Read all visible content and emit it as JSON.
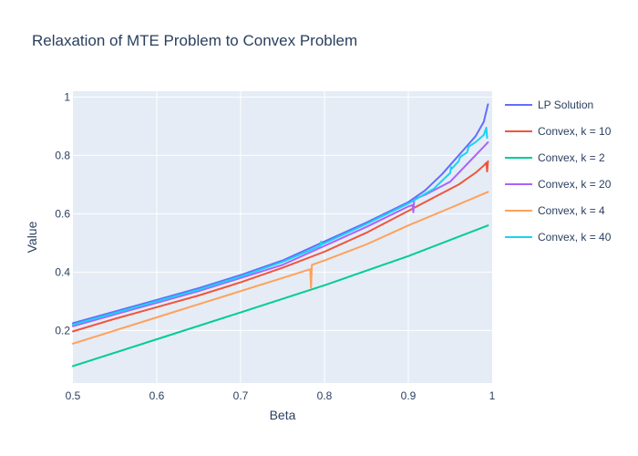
{
  "chart_data": {
    "type": "line",
    "title": "Relaxation of MTE Problem to Convex Problem",
    "xlabel": "Beta",
    "ylabel": "Value",
    "xlim": [
      0.5,
      1.0
    ],
    "ylim": [
      0.02,
      1.02
    ],
    "xticks": [
      "0.5",
      "0.6",
      "0.7",
      "0.8",
      "0.9",
      "1"
    ],
    "xtick_values": [
      0.5,
      0.6,
      0.7,
      0.8,
      0.9,
      1.0
    ],
    "yticks": [
      "0.2",
      "0.4",
      "0.6",
      "0.8",
      "1"
    ],
    "ytick_values": [
      0.2,
      0.4,
      0.6,
      0.8,
      1.0
    ],
    "grid": true,
    "legend_position": "right",
    "plot_background": "#e5ecf6",
    "series": [
      {
        "name": "LP Solution",
        "color": "#636efa",
        "x": [
          0.5,
          0.55,
          0.6,
          0.65,
          0.7,
          0.75,
          0.8,
          0.85,
          0.9,
          0.92,
          0.94,
          0.96,
          0.98,
          0.99,
          0.995
        ],
        "y": [
          0.225,
          0.265,
          0.305,
          0.345,
          0.39,
          0.44,
          0.505,
          0.57,
          0.64,
          0.68,
          0.735,
          0.8,
          0.865,
          0.915,
          0.975
        ]
      },
      {
        "name": "Convex, k = 10",
        "color": "#ef553b",
        "x": [
          0.5,
          0.55,
          0.6,
          0.65,
          0.7,
          0.75,
          0.8,
          0.85,
          0.9,
          0.93,
          0.96,
          0.98,
          0.99,
          0.993,
          0.994,
          0.995
        ],
        "y": [
          0.197,
          0.24,
          0.28,
          0.32,
          0.365,
          0.415,
          0.47,
          0.535,
          0.61,
          0.655,
          0.7,
          0.74,
          0.765,
          0.775,
          0.745,
          0.78
        ]
      },
      {
        "name": "Convex, k = 2",
        "color": "#00cc96",
        "x": [
          0.5,
          0.6,
          0.7,
          0.8,
          0.9,
          0.995
        ],
        "y": [
          0.078,
          0.17,
          0.262,
          0.355,
          0.455,
          0.56
        ]
      },
      {
        "name": "Convex, k = 20",
        "color": "#ab63fa",
        "x": [
          0.5,
          0.55,
          0.6,
          0.65,
          0.7,
          0.75,
          0.8,
          0.85,
          0.9,
          0.905,
          0.906,
          0.907,
          0.92,
          0.95,
          0.97,
          0.98,
          0.99,
          0.995
        ],
        "y": [
          0.215,
          0.255,
          0.295,
          0.335,
          0.38,
          0.425,
          0.49,
          0.555,
          0.625,
          0.63,
          0.605,
          0.65,
          0.665,
          0.71,
          0.77,
          0.8,
          0.83,
          0.845
        ]
      },
      {
        "name": "Convex, k = 4",
        "color": "#ffa15a",
        "x": [
          0.5,
          0.55,
          0.6,
          0.65,
          0.7,
          0.75,
          0.783,
          0.784,
          0.785,
          0.8,
          0.85,
          0.9,
          0.95,
          0.995
        ],
        "y": [
          0.155,
          0.2,
          0.245,
          0.29,
          0.335,
          0.38,
          0.41,
          0.345,
          0.425,
          0.44,
          0.495,
          0.56,
          0.62,
          0.675
        ]
      },
      {
        "name": "Convex, k = 40",
        "color": "#19d3f3",
        "x": [
          0.5,
          0.55,
          0.6,
          0.65,
          0.7,
          0.75,
          0.795,
          0.796,
          0.797,
          0.85,
          0.9,
          0.93,
          0.95,
          0.951,
          0.952,
          0.96,
          0.962,
          0.97,
          0.972,
          0.98,
          0.99,
          0.993,
          0.994
        ],
        "y": [
          0.22,
          0.26,
          0.3,
          0.34,
          0.385,
          0.435,
          0.49,
          0.505,
          0.495,
          0.565,
          0.635,
          0.685,
          0.74,
          0.76,
          0.755,
          0.78,
          0.795,
          0.81,
          0.83,
          0.845,
          0.87,
          0.895,
          0.86
        ]
      }
    ]
  }
}
